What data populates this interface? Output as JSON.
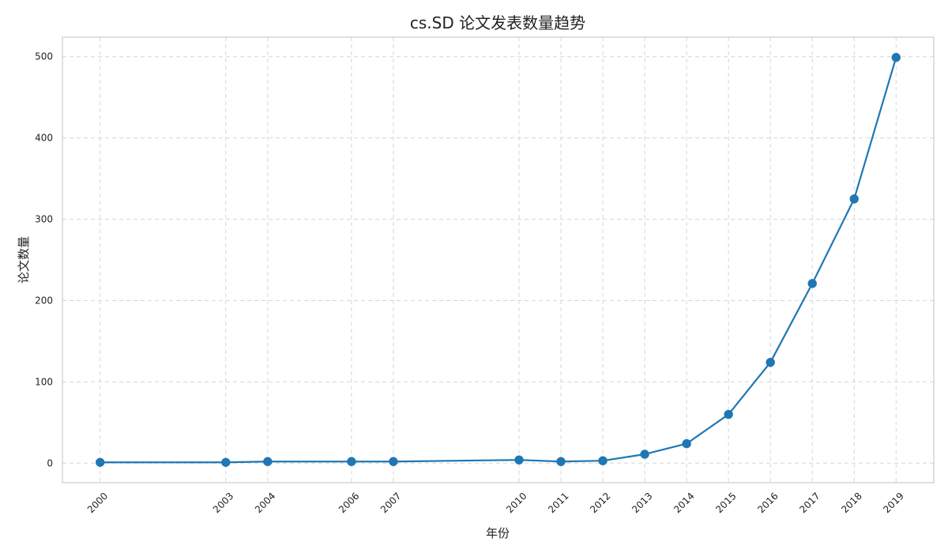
{
  "chart_data": {
    "type": "line",
    "title": "cs.SD 论文发表数量趋势",
    "xlabel": "年份",
    "ylabel": "论文数量",
    "x": [
      2000,
      2003,
      2004,
      2006,
      2007,
      2010,
      2011,
      2012,
      2013,
      2014,
      2015,
      2016,
      2017,
      2018,
      2019
    ],
    "series": [
      {
        "values": [
          1,
          1,
          2,
          2,
          2,
          4,
          2,
          3,
          11,
          24,
          60,
          124,
          221,
          325,
          499
        ]
      }
    ],
    "xticks": [
      "2000",
      "2003",
      "2004",
      "2006",
      "2007",
      "2010",
      "2011",
      "2012",
      "2013",
      "2014",
      "2015",
      "2016",
      "2017",
      "2018",
      "2019"
    ],
    "yticks": [
      "0",
      "100",
      "200",
      "300",
      "400",
      "500"
    ],
    "ytick_values": [
      0,
      100,
      200,
      300,
      400,
      500
    ],
    "xlim": [
      1999.1,
      2019.9
    ],
    "ylim": [
      -24,
      524
    ],
    "grid": true,
    "legend": "none",
    "colors": {
      "line": "#1f77b4",
      "grid": "#d6d6d6",
      "frame": "#cccccc"
    }
  }
}
